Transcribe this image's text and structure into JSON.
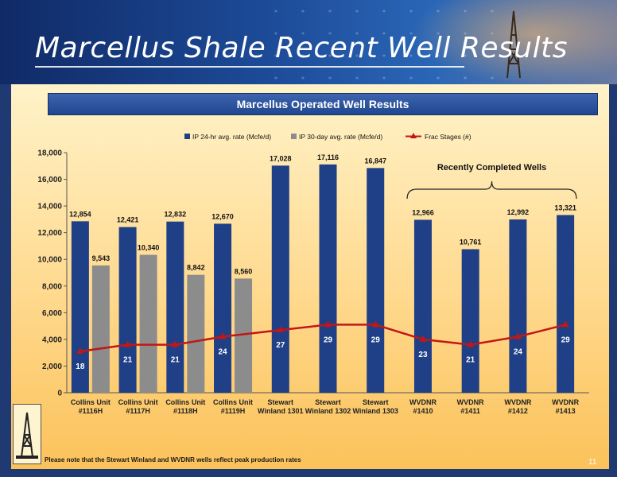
{
  "slide": {
    "title": "Marcellus Shale Recent Well Results",
    "banner": "Marcellus Operated Well Results",
    "footnote": "Please note that the Stewart Winland and WVDNR wells reflect peak production rates",
    "page_number": "11"
  },
  "chart_data": {
    "type": "bar",
    "categories": [
      [
        "Collins Unit",
        "#1116H"
      ],
      [
        "Collins Unit",
        "#1117H"
      ],
      [
        "Collins Unit",
        "#1118H"
      ],
      [
        "Collins Unit",
        "#1119H"
      ],
      [
        "Stewart",
        "Winland 1301"
      ],
      [
        "Stewart",
        "Winland 1302"
      ],
      [
        "Stewart",
        "Winland 1303"
      ],
      [
        "WVDNR",
        "#1410"
      ],
      [
        "WVDNR",
        "#1411"
      ],
      [
        "WVDNR",
        "#1412"
      ],
      [
        "WVDNR",
        "#1413"
      ]
    ],
    "series": [
      {
        "name": "IP 24-hr avg. rate (Mcfe/d)",
        "kind": "bar",
        "color": "#1f3f86",
        "values": [
          12854,
          12421,
          12832,
          12670,
          17028,
          17116,
          16847,
          12966,
          10761,
          12992,
          13321
        ],
        "labels": [
          "12,854",
          "12,421",
          "12,832",
          "12,670",
          "17,028",
          "17,116",
          "16,847",
          "12,966",
          "10,761",
          "12,992",
          "13,321"
        ]
      },
      {
        "name": "IP 30-day avg. rate (Mcfe/d)",
        "kind": "bar",
        "color": "#8c8c8c",
        "values": [
          9543,
          10340,
          8842,
          8560,
          null,
          null,
          null,
          null,
          null,
          null,
          null
        ],
        "labels": [
          "9,543",
          "10,340",
          "8,842",
          "8,560",
          "",
          "",
          "",
          "",
          "",
          "",
          ""
        ]
      },
      {
        "name": "Frac Stages (#)",
        "kind": "line",
        "color": "#c01818",
        "values": [
          18,
          21,
          21,
          24,
          27,
          29,
          29,
          23,
          21,
          24,
          29
        ],
        "labels": [
          "18",
          "21",
          "21",
          "24",
          "27",
          "29",
          "29",
          "23",
          "21",
          "24",
          "29"
        ]
      }
    ],
    "frac_line_rates": [
      3100,
      3600,
      3600,
      4200,
      4700,
      5100,
      5100,
      4000,
      3600,
      4200,
      5100
    ],
    "y_ticks": [
      "0",
      "2,000",
      "4,000",
      "6,000",
      "8,000",
      "10,000",
      "12,000",
      "14,000",
      "16,000",
      "18,000"
    ],
    "ylim": [
      0,
      18000
    ],
    "annotation": "Recently Completed Wells",
    "legend_position": "top",
    "grid": false
  }
}
